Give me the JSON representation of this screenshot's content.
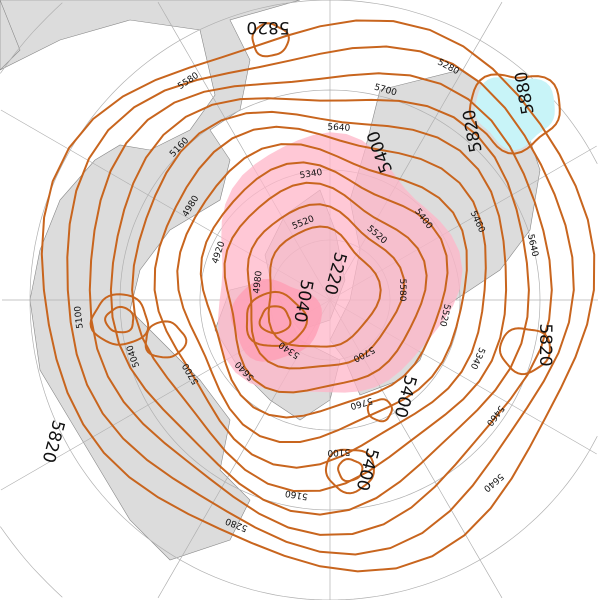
{
  "map": {
    "projection": "polar-stereographic",
    "colors": {
      "contour": "#c8651e",
      "low_fill": "#ffb6c8",
      "high_fill": "#c8f4f8",
      "land": "#dcdcdc",
      "ocean": "#ffffff",
      "grid": "#b0b0b0"
    },
    "contour_labels_large": [
      {
        "text": "5820",
        "pos": "top"
      },
      {
        "text": "5880",
        "pos": "top-right"
      },
      {
        "text": "5820",
        "pos": "top-right-2"
      },
      {
        "text": "5400",
        "pos": "upper-center"
      },
      {
        "text": "5220",
        "pos": "center"
      },
      {
        "text": "5040",
        "pos": "center-left"
      },
      {
        "text": "5820",
        "pos": "right"
      },
      {
        "text": "5400",
        "pos": "lower-right"
      },
      {
        "text": "5400",
        "pos": "bottom"
      },
      {
        "text": "5820",
        "pos": "left"
      }
    ],
    "contour_labels_small": [
      "5580",
      "5520",
      "5340",
      "5460",
      "5640",
      "5700",
      "5760",
      "5100",
      "5160",
      "5280",
      "5340",
      "5640",
      "5700",
      "5040",
      "5100",
      "4980",
      "4920",
      "4980",
      "5160",
      "5580",
      "5520",
      "5340",
      "5640",
      "5700",
      "5280",
      "5520",
      "5400",
      "5460",
      "5640"
    ]
  }
}
